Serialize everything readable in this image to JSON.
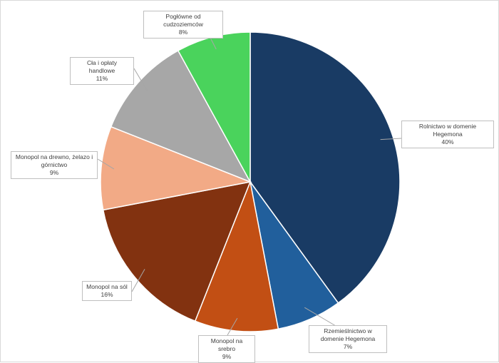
{
  "chart_data": {
    "type": "pie",
    "title": "",
    "slices": [
      {
        "label": "Rolnictwo w domenie Hegemona",
        "value": 40,
        "value_label": "40%",
        "color": "#193b64"
      },
      {
        "label": "Rzemieślnictwo w domenie Hegemona",
        "value": 7,
        "value_label": "7%",
        "color": "#215f9c"
      },
      {
        "label": "Monopol na srebro",
        "value": 9,
        "value_label": "9%",
        "color": "#c24f14"
      },
      {
        "label": "Monopol na sól",
        "value": 16,
        "value_label": "16%",
        "color": "#823210"
      },
      {
        "label": "Monopol na drewno, żelazo i górnictwo",
        "value": 9,
        "value_label": "9%",
        "color": "#f2aa86"
      },
      {
        "label": "Cła i opłaty handlowe",
        "value": 11,
        "value_label": "11%",
        "color": "#a7a7a7"
      },
      {
        "label": "Pogłówne od cudzoziemców",
        "value": 8,
        "value_label": "8%",
        "color": "#4ad35c"
      }
    ],
    "start_angle": "12 o'clock",
    "direction": "clockwise",
    "legend": "none"
  }
}
